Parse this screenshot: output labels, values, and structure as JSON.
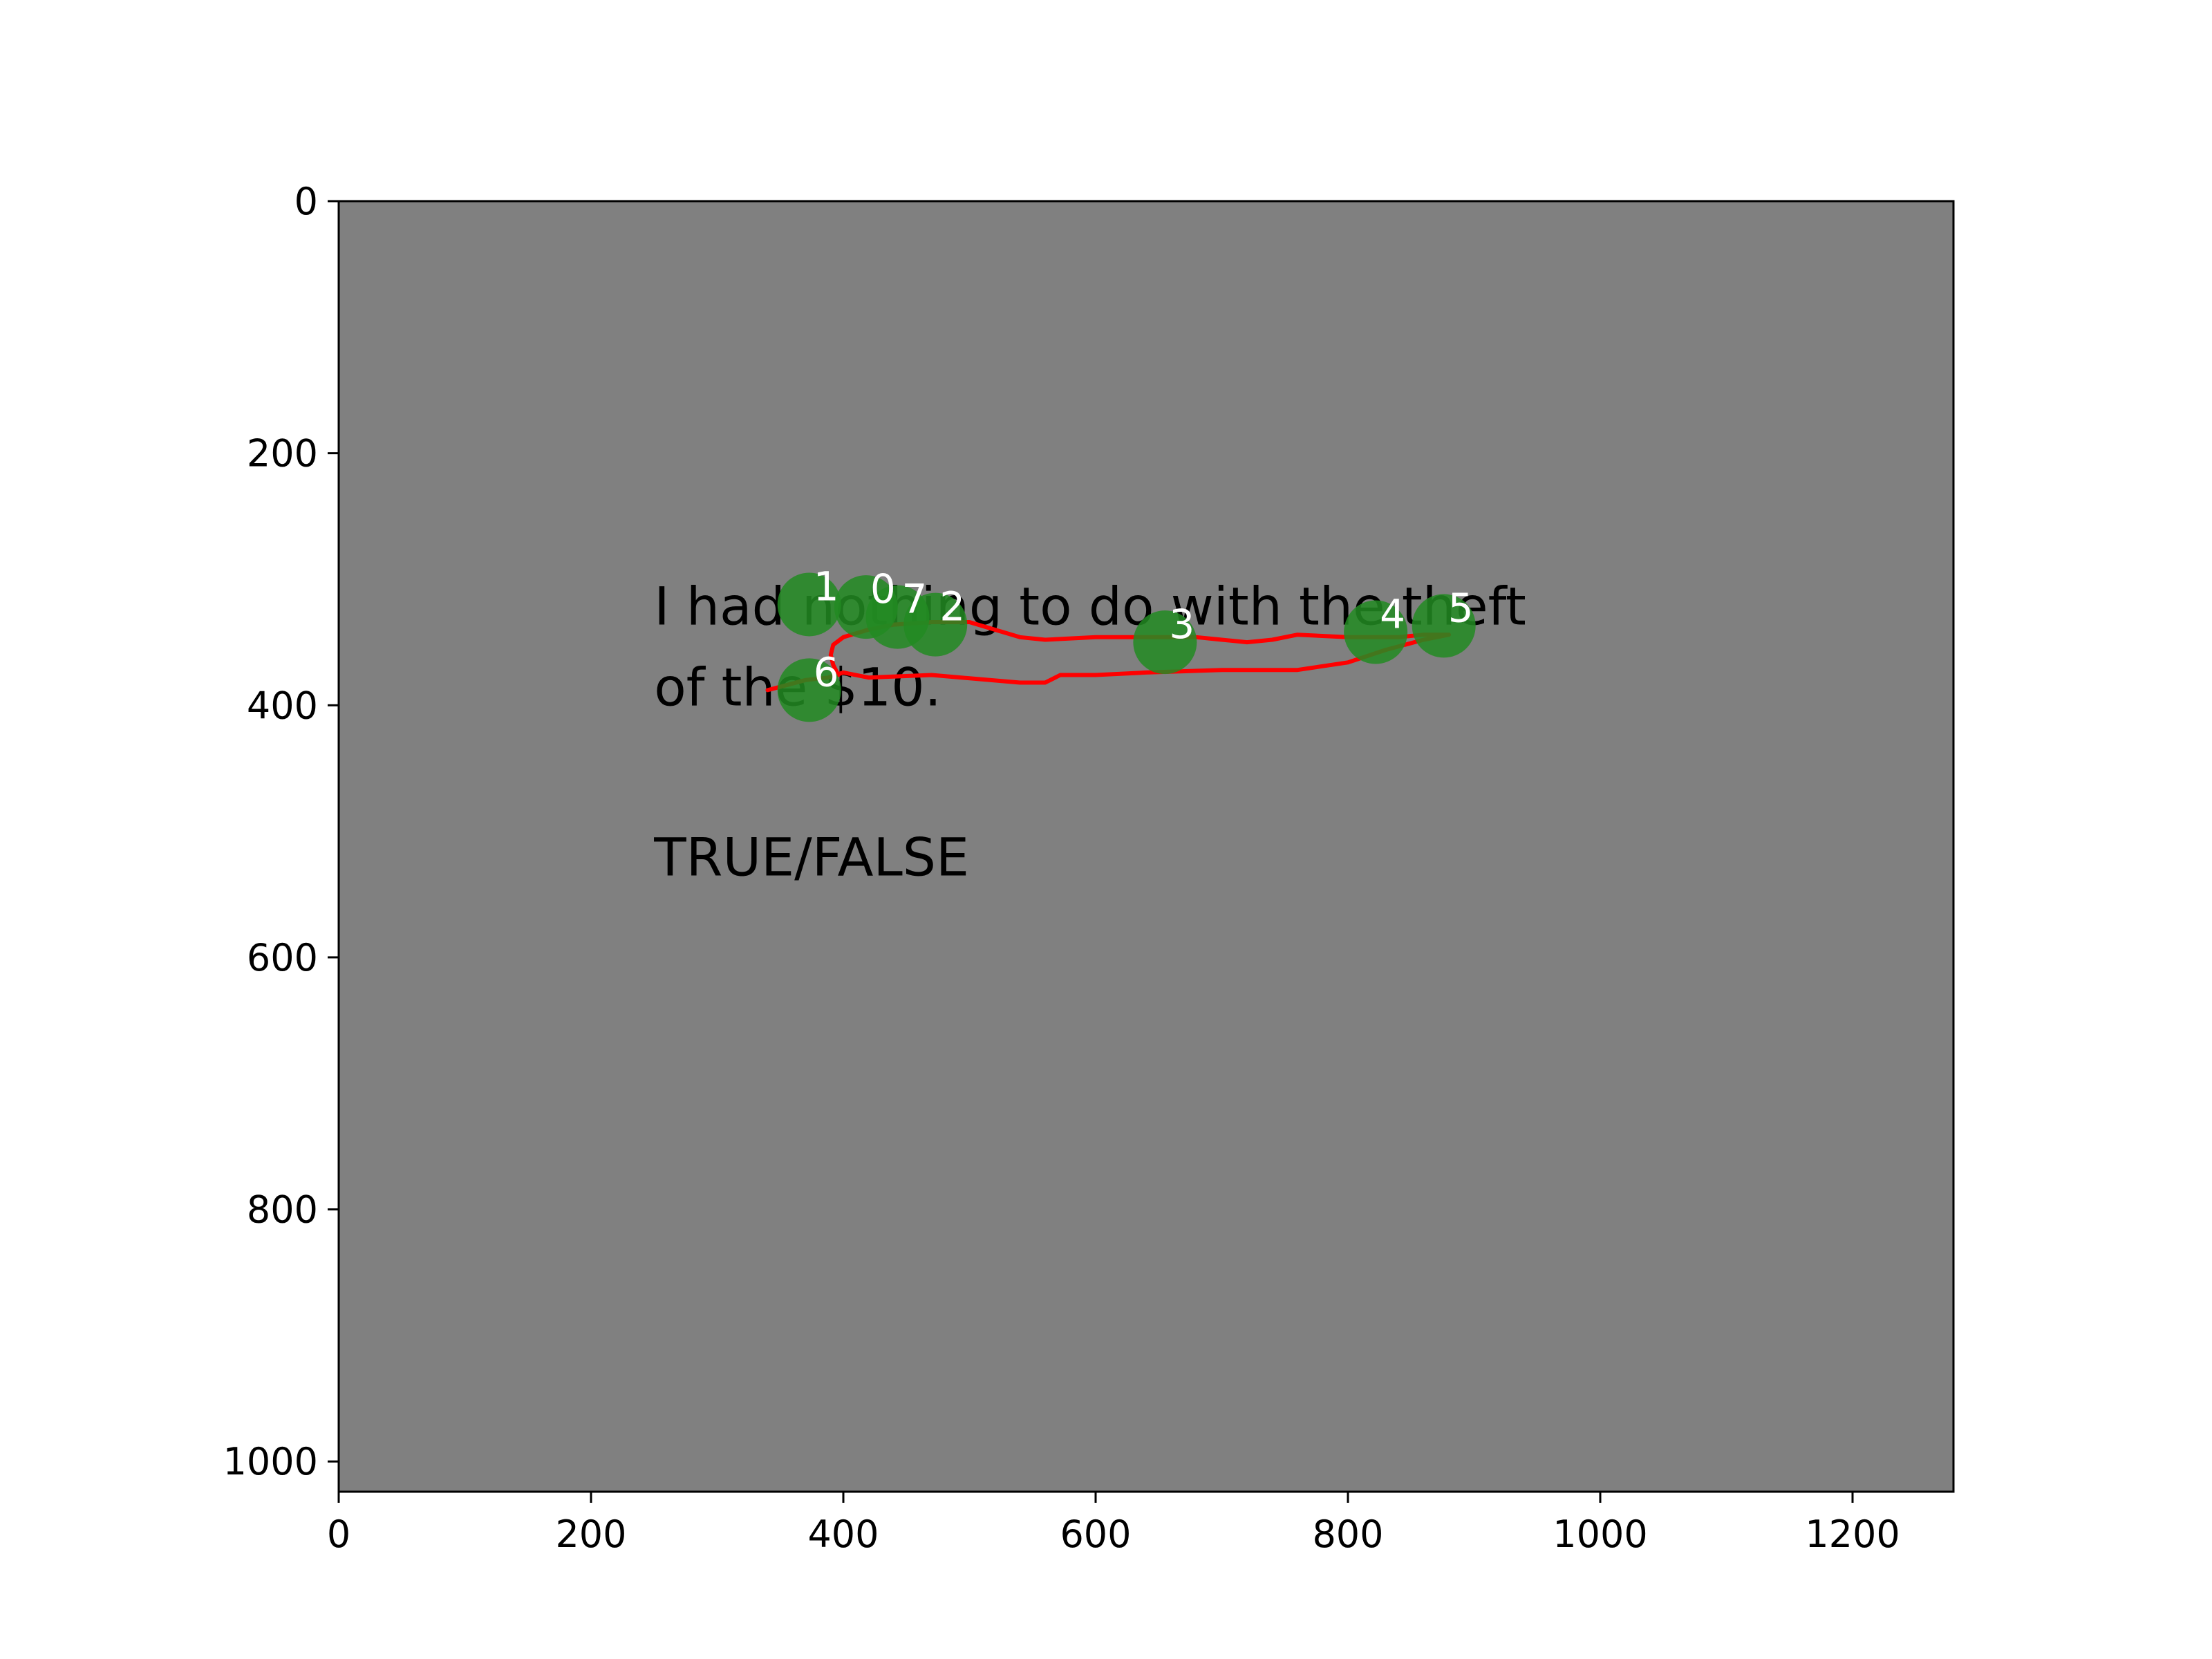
{
  "chart_data": {
    "type": "scatter",
    "title": "",
    "xlabel": "",
    "ylabel": "",
    "xlim": [
      0,
      1280
    ],
    "ylim": [
      1024,
      0
    ],
    "y_inverted": true,
    "grid": false,
    "x_ticks": [
      0,
      200,
      400,
      600,
      800,
      1000,
      1200
    ],
    "y_ticks": [
      0,
      200,
      400,
      600,
      800,
      1000
    ],
    "background_color": "#808080",
    "stimulus_text": {
      "lines": [
        {
          "text": "I had nothing to do with the theft",
          "x": 250,
          "y": 336
        },
        {
          "text": "of the $10.",
          "x": 250,
          "y": 400
        },
        {
          "text": "TRUE/FALSE",
          "x": 250,
          "y": 535
        }
      ]
    },
    "gaze_path": {
      "color": "#ff0000",
      "points": [
        [
          340,
          388
        ],
        [
          370,
          380
        ],
        [
          388,
          378
        ],
        [
          400,
          374
        ],
        [
          420,
          378
        ],
        [
          470,
          376
        ],
        [
          540,
          382
        ],
        [
          560,
          382
        ],
        [
          572,
          376
        ],
        [
          600,
          376
        ],
        [
          640,
          374
        ],
        [
          700,
          372
        ],
        [
          760,
          372
        ],
        [
          800,
          366
        ],
        [
          830,
          356
        ],
        [
          860,
          348
        ],
        [
          880,
          344
        ],
        [
          860,
          344
        ],
        [
          840,
          346
        ],
        [
          800,
          346
        ],
        [
          760,
          344
        ],
        [
          740,
          348
        ],
        [
          720,
          350
        ],
        [
          700,
          348
        ],
        [
          680,
          346
        ],
        [
          640,
          346
        ],
        [
          600,
          346
        ],
        [
          560,
          348
        ],
        [
          540,
          346
        ],
        [
          520,
          340
        ],
        [
          500,
          334
        ],
        [
          470,
          334
        ],
        [
          440,
          336
        ],
        [
          420,
          340
        ],
        [
          400,
          346
        ],
        [
          392,
          352
        ],
        [
          390,
          360
        ],
        [
          392,
          368
        ],
        [
          396,
          376
        ]
      ]
    },
    "fixations": {
      "color": "#228b22",
      "label_color": "#ffffff",
      "points": [
        {
          "label": "0",
          "x": 418,
          "y": 322
        },
        {
          "label": "1",
          "x": 373,
          "y": 320
        },
        {
          "label": "2",
          "x": 473,
          "y": 336
        },
        {
          "label": "3",
          "x": 655,
          "y": 350
        },
        {
          "label": "4",
          "x": 822,
          "y": 342
        },
        {
          "label": "5",
          "x": 876,
          "y": 337
        },
        {
          "label": "6",
          "x": 373,
          "y": 388
        },
        {
          "label": "7",
          "x": 443,
          "y": 330
        }
      ]
    }
  }
}
